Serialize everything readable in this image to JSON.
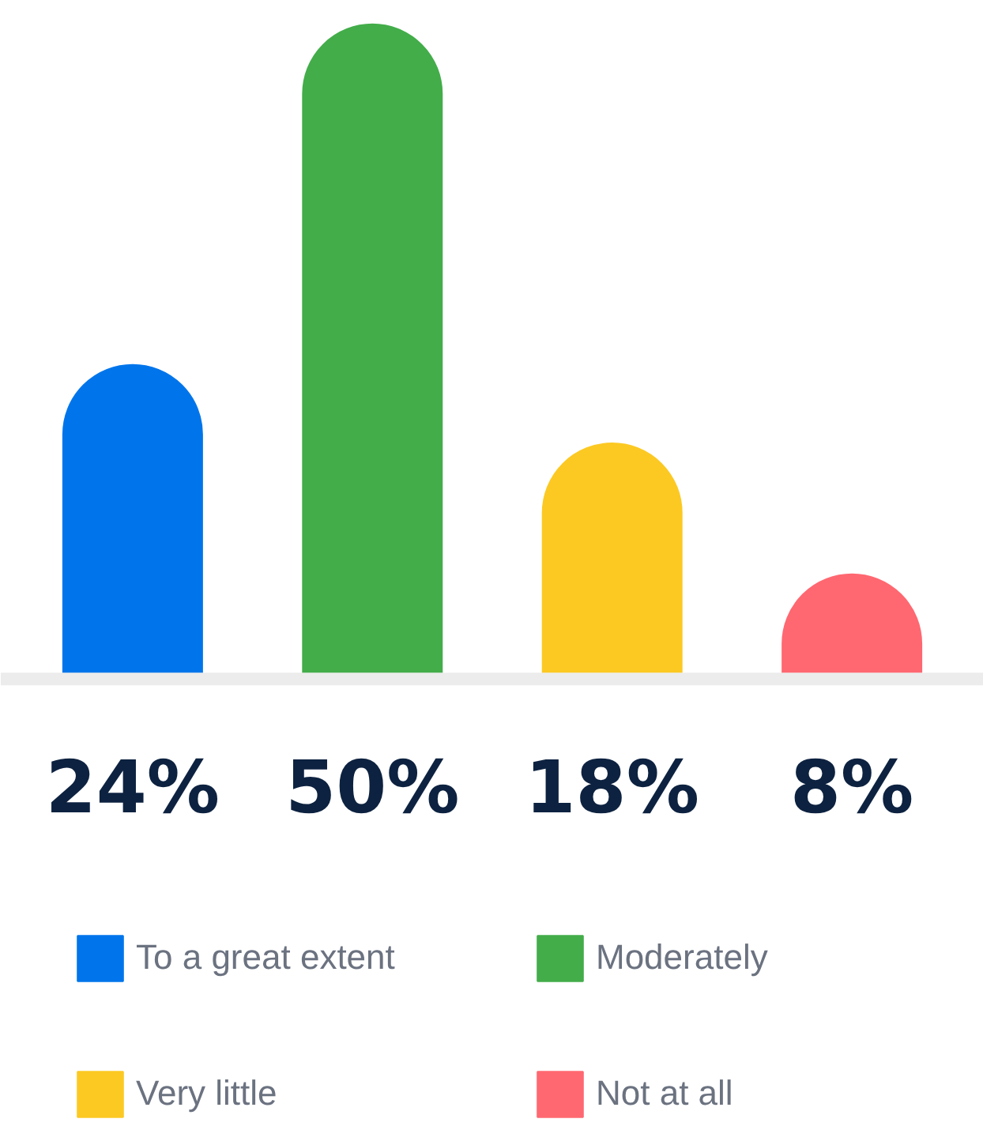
{
  "chart_data": {
    "type": "bar",
    "stacked": true,
    "categories": [
      null,
      null,
      null,
      null
    ],
    "series": [
      {
        "name": "To a great extent",
        "color": "#0075eb",
        "values": [
          24,
          null,
          null,
          null
        ],
        "value_labels": [
          "24%",
          null,
          null,
          null
        ]
      },
      {
        "name": "Moderately",
        "color": "#43ad4a",
        "values": [
          null,
          50,
          null,
          null
        ],
        "value_labels": [
          null,
          "50%",
          null,
          null
        ]
      },
      {
        "name": "Very little",
        "color": "#fcc923",
        "values": [
          null,
          null,
          18,
          null
        ],
        "value_labels": [
          null,
          null,
          "18%",
          null
        ]
      },
      {
        "name": "Not at all",
        "color": "#ff6871",
        "values": [
          null,
          null,
          null,
          8
        ],
        "value_labels": [
          null,
          null,
          null,
          "8%"
        ]
      }
    ],
    "legend": "bottom"
  }
}
